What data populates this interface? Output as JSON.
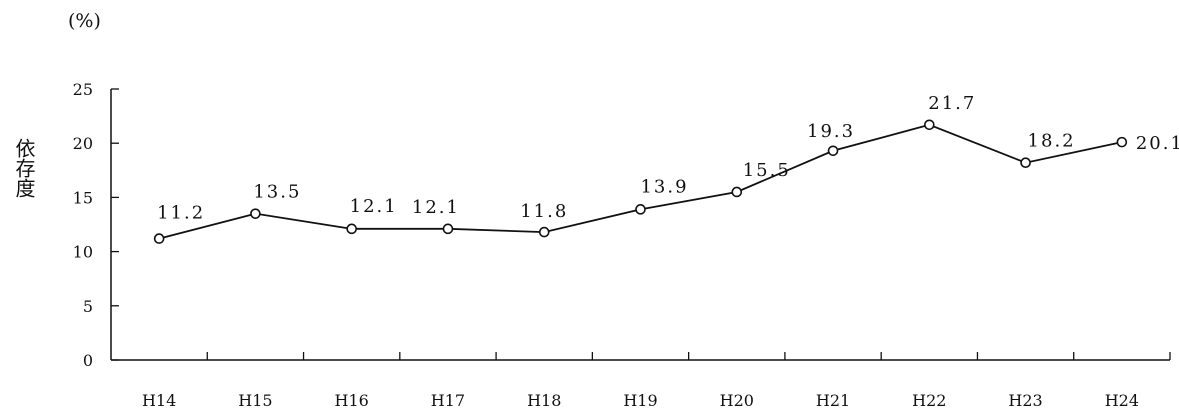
{
  "chart_data": {
    "type": "line",
    "unit": "(%)",
    "ylabel": "依存度",
    "xlabel": "",
    "title": "",
    "categories": [
      "H14",
      "H15",
      "H16",
      "H17",
      "H18",
      "H19",
      "H20",
      "H21",
      "H22",
      "H23",
      "H24"
    ],
    "values": [
      11.2,
      13.5,
      12.1,
      12.1,
      11.8,
      13.9,
      15.5,
      19.3,
      21.7,
      18.2,
      20.1
    ],
    "data_labels": [
      "11.2",
      "13.5",
      "12.1",
      "12.1",
      "11.8",
      "13.9",
      "15.5",
      "19.3",
      "21.7",
      "18.2",
      "20.1"
    ],
    "yticks": [
      0,
      5,
      10,
      15,
      20,
      25
    ],
    "ylim": [
      0,
      25
    ],
    "grid": false,
    "legend": "none",
    "colors": {
      "line": "#111111",
      "marker_fill": "#ffffff",
      "axis": "#111111"
    }
  }
}
